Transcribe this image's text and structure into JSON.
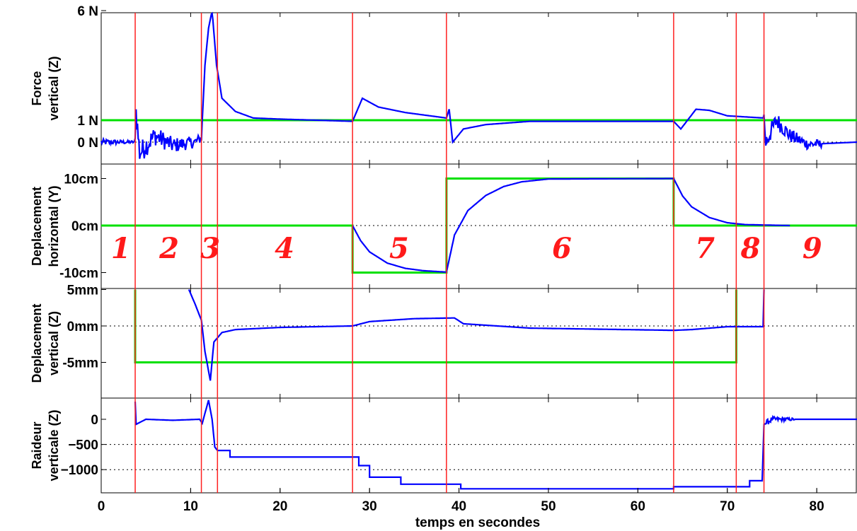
{
  "chart_data": {
    "type": "line",
    "x_axis": {
      "label": "temps en secondes",
      "range": [
        0,
        84.5
      ],
      "ticks": [
        0,
        10,
        20,
        30,
        40,
        50,
        60,
        70,
        80
      ],
      "tick_labels": [
        "0",
        "10",
        "20",
        "30",
        "40",
        "50",
        "60",
        "70",
        "80"
      ]
    },
    "phase_boundaries": [
      3.8,
      11.2,
      13.0,
      28.1,
      38.6,
      64.0,
      71.0,
      74.1
    ],
    "phase_labels": [
      {
        "text": "1",
        "x": 2.2
      },
      {
        "text": "2",
        "x": 7.6
      },
      {
        "text": "3",
        "x": 12.2
      },
      {
        "text": "4",
        "x": 20.5
      },
      {
        "text": "5",
        "x": 33.3
      },
      {
        "text": "6",
        "x": 51.5
      },
      {
        "text": "7",
        "x": 67.5
      },
      {
        "text": "8",
        "x": 72.6
      },
      {
        "text": "9",
        "x": 79.5
      }
    ],
    "colors": {
      "measured": "#0000ff",
      "reference": "#00e000",
      "boundary": "#ff2020"
    },
    "panels": [
      {
        "ylabel_lines": [
          "Force",
          "vertical (Z)"
        ],
        "y_range": [
          -0.6,
          6
        ],
        "y_ticks": [
          0,
          1,
          6
        ],
        "y_tick_labels": [
          "0 N",
          "1 N",
          "6 N"
        ],
        "grid_dotted_at": [
          0,
          1
        ],
        "reference": [
          [
            0,
            1
          ],
          [
            84.5,
            1
          ]
        ],
        "measured": [
          [
            0,
            0
          ],
          [
            3.8,
            0
          ],
          [
            3.9,
            1.4
          ],
          [
            4.3,
            -0.5
          ],
          [
            6,
            0.3
          ],
          [
            8,
            -0.15
          ],
          [
            10.5,
            0
          ],
          [
            11.2,
            0.2
          ],
          [
            11.6,
            3.5
          ],
          [
            12.0,
            5.2
          ],
          [
            12.4,
            6.0
          ],
          [
            12.9,
            3.5
          ],
          [
            13.5,
            2.0
          ],
          [
            15,
            1.4
          ],
          [
            17,
            1.1
          ],
          [
            20,
            1.05
          ],
          [
            28.1,
            0.95
          ],
          [
            29.2,
            2.0
          ],
          [
            31,
            1.6
          ],
          [
            34,
            1.35
          ],
          [
            38.6,
            1.1
          ],
          [
            38.9,
            1.5
          ],
          [
            39.3,
            0.0
          ],
          [
            40.5,
            0.6
          ],
          [
            43,
            0.8
          ],
          [
            48,
            0.95
          ],
          [
            64,
            0.95
          ],
          [
            64.8,
            0.6
          ],
          [
            66.5,
            1.5
          ],
          [
            68,
            1.45
          ],
          [
            70,
            1.2
          ],
          [
            74.1,
            1.1
          ],
          [
            74.3,
            0.0
          ],
          [
            75.5,
            1.0
          ],
          [
            77,
            0.3
          ],
          [
            79,
            -0.1
          ],
          [
            84.5,
            0
          ]
        ],
        "noise": [
          [
            3.8,
            11.2,
            0.55
          ],
          [
            74.1,
            80.5,
            0.45
          ],
          [
            0,
            3.8,
            0.15
          ]
        ]
      },
      {
        "ylabel_lines": [
          "Deplacement",
          "horizontal (Y)"
        ],
        "y_range": [
          -10,
          10
        ],
        "y_ticks": [
          -10,
          0,
          10
        ],
        "y_tick_labels": [
          "-10cm",
          "0cm",
          "10cm"
        ],
        "grid_dotted_at": [
          0
        ],
        "reference": [
          [
            0,
            0
          ],
          [
            28.1,
            0
          ],
          [
            28.1,
            -10
          ],
          [
            38.6,
            -10
          ],
          [
            38.6,
            10
          ],
          [
            64,
            10
          ],
          [
            64,
            0
          ],
          [
            84.5,
            0
          ]
        ],
        "measured": [
          [
            28.1,
            0
          ],
          [
            29,
            -3.2
          ],
          [
            30,
            -5.6
          ],
          [
            32,
            -8
          ],
          [
            34,
            -9.1
          ],
          [
            36,
            -9.6
          ],
          [
            38.6,
            -9.9
          ],
          [
            39.5,
            -2
          ],
          [
            41,
            3.2
          ],
          [
            43,
            6.4
          ],
          [
            45,
            8.3
          ],
          [
            47,
            9.3
          ],
          [
            50,
            9.9
          ],
          [
            64,
            10
          ],
          [
            65,
            6.3
          ],
          [
            66,
            4.0
          ],
          [
            68,
            1.7
          ],
          [
            70,
            0.6
          ],
          [
            72,
            0.2
          ],
          [
            77,
            0
          ]
        ],
        "noise": []
      },
      {
        "ylabel_lines": [
          "Deplacement",
          "vertical (Z)"
        ],
        "y_range": [
          -9.5,
          5
        ],
        "y_ticks": [
          -5,
          0,
          5
        ],
        "y_tick_labels": [
          "-5mm",
          "0mm",
          "5mm"
        ],
        "grid_dotted_at": [
          0
        ],
        "reference": [
          [
            3.8,
            5
          ],
          [
            3.8,
            -5
          ],
          [
            71,
            -5
          ],
          [
            71,
            5
          ]
        ],
        "measured": [
          [
            9.8,
            5
          ],
          [
            10.5,
            3
          ],
          [
            11.2,
            0.8
          ],
          [
            11.6,
            -3.5
          ],
          [
            12.2,
            -7.5
          ],
          [
            12.6,
            -2.2
          ],
          [
            13.5,
            -0.9
          ],
          [
            15,
            -0.5
          ],
          [
            20,
            -0.2
          ],
          [
            28.1,
            0
          ],
          [
            30,
            0.6
          ],
          [
            35,
            1.0
          ],
          [
            39.5,
            1.1
          ],
          [
            40.5,
            0.3
          ],
          [
            48,
            -0.3
          ],
          [
            64,
            -0.6
          ],
          [
            66,
            -0.5
          ],
          [
            70,
            -0.1
          ],
          [
            74,
            -0.1
          ],
          [
            74.1,
            5
          ]
        ],
        "noise": []
      },
      {
        "ylabel_lines": [
          "Raideur",
          "verticale (Z)"
        ],
        "y_range": [
          -1400,
          420
        ],
        "y_ticks": [
          -1000,
          -500,
          0
        ],
        "y_tick_labels": [
          "−1000",
          "−500",
          "0"
        ],
        "grid_dotted_at": [
          -500,
          -1000
        ],
        "reference": [],
        "measured": [
          [
            3.8,
            350
          ],
          [
            3.9,
            -100
          ],
          [
            5,
            0
          ],
          [
            8,
            -20
          ],
          [
            11,
            0
          ],
          [
            11.3,
            -80
          ],
          [
            12.0,
            380
          ],
          [
            12.4,
            0
          ],
          [
            12.7,
            -550
          ],
          [
            13.0,
            -620
          ],
          [
            14.4,
            -620
          ],
          [
            14.4,
            -750
          ],
          [
            28.1,
            -750
          ],
          [
            28.1,
            -750
          ],
          [
            28.8,
            -750
          ],
          [
            28.8,
            -920
          ],
          [
            30,
            -920
          ],
          [
            30,
            -1150
          ],
          [
            33.5,
            -1150
          ],
          [
            33.5,
            -1290
          ],
          [
            40.2,
            -1290
          ],
          [
            40.2,
            -1380
          ],
          [
            64,
            -1380
          ],
          [
            64,
            -1340
          ],
          [
            72.5,
            -1340
          ],
          [
            72.5,
            -1220
          ],
          [
            73.9,
            -1220
          ],
          [
            74.1,
            -100
          ],
          [
            75,
            0
          ],
          [
            80,
            0
          ],
          [
            84.5,
            0
          ]
        ],
        "noise": [
          [
            74.2,
            77.5,
            60
          ]
        ]
      }
    ]
  }
}
